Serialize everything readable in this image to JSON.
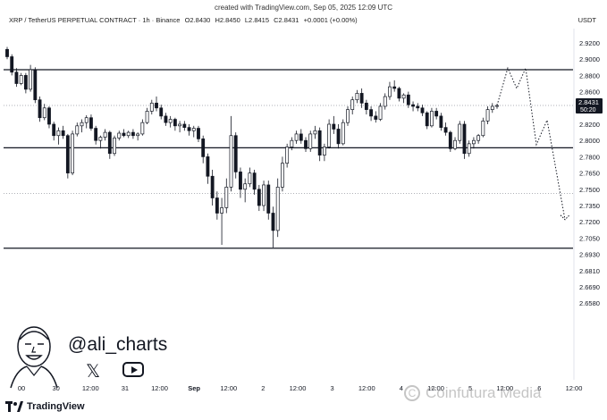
{
  "created": "created with TradingView.com, Sep 05, 2025 12:09 UTC",
  "header": {
    "symbol": "XRP / TetherUS PERPETUAL CONTRACT · 1h · Binance",
    "open": "O2.8430",
    "high": "H2.8450",
    "low": "L2.8415",
    "close": "C2.8431",
    "change": "+0.0001 (+0.00%)"
  },
  "currency": "USDT",
  "price_tag": {
    "price": "2.8431",
    "countdown": "50:20",
    "color": "#131722"
  },
  "author": {
    "handle": "@ali_charts",
    "icons": [
      "x-icon",
      "youtube-icon"
    ]
  },
  "branding": {
    "tradingview": "TradingView",
    "watermark": "Coinfutura Media"
  },
  "chart_data": {
    "type": "candlestick",
    "y_ticks": [
      "2.9200",
      "2.9000",
      "2.8800",
      "2.8600",
      "2.8400",
      "2.8200",
      "2.8000",
      "2.7800",
      "2.7650",
      "2.7500",
      "2.7350",
      "2.7200",
      "2.7050",
      "2.6930",
      "2.6810",
      "2.6690",
      "2.6580"
    ],
    "x_ticks": [
      "00",
      "30",
      "12:00",
      "31",
      "12:00",
      "Sep",
      "12:00",
      "2",
      "12:00",
      "3",
      "12:00",
      "4",
      "12:00",
      "5",
      "12:00",
      "6",
      "12:00"
    ],
    "ylim": [
      2.655,
      2.93
    ],
    "horizontal_levels": [
      2.887,
      2.791,
      2.6975
    ],
    "dotted_levels": [
      2.8431,
      2.746
    ],
    "candles": [
      [
        2.912,
        2.915,
        2.9,
        2.903
      ],
      [
        2.903,
        2.906,
        2.88,
        2.884
      ],
      [
        2.884,
        2.889,
        2.866,
        2.87
      ],
      [
        2.87,
        2.883,
        2.868,
        2.88
      ],
      [
        2.88,
        2.883,
        2.858,
        2.863
      ],
      [
        2.863,
        2.893,
        2.86,
        2.887
      ],
      [
        2.887,
        2.89,
        2.846,
        2.85
      ],
      [
        2.85,
        2.854,
        2.823,
        2.828
      ],
      [
        2.828,
        2.845,
        2.825,
        2.84
      ],
      [
        2.84,
        2.842,
        2.815,
        2.82
      ],
      [
        2.82,
        2.823,
        2.8,
        2.806
      ],
      [
        2.806,
        2.816,
        2.795,
        2.812
      ],
      [
        2.812,
        2.818,
        2.802,
        2.806
      ],
      [
        2.806,
        2.808,
        2.76,
        2.765
      ],
      [
        2.765,
        2.812,
        2.763,
        2.808
      ],
      [
        2.808,
        2.822,
        2.805,
        2.818
      ],
      [
        2.818,
        2.826,
        2.81,
        2.822
      ],
      [
        2.822,
        2.831,
        2.815,
        2.828
      ],
      [
        2.828,
        2.832,
        2.812,
        2.815
      ],
      [
        2.815,
        2.818,
        2.795,
        2.8
      ],
      [
        2.8,
        2.806,
        2.79,
        2.804
      ],
      [
        2.804,
        2.814,
        2.8,
        2.81
      ],
      [
        2.81,
        2.812,
        2.778,
        2.784
      ],
      [
        2.784,
        2.806,
        2.781,
        2.803
      ],
      [
        2.803,
        2.812,
        2.8,
        2.809
      ],
      [
        2.809,
        2.814,
        2.804,
        2.806
      ],
      [
        2.806,
        2.812,
        2.803,
        2.81
      ],
      [
        2.81,
        2.814,
        2.802,
        2.806
      ],
      [
        2.806,
        2.81,
        2.8,
        2.808
      ],
      [
        2.808,
        2.826,
        2.806,
        2.822
      ],
      [
        2.822,
        2.84,
        2.82,
        2.836
      ],
      [
        2.836,
        2.85,
        2.832,
        2.846
      ],
      [
        2.846,
        2.854,
        2.836,
        2.84
      ],
      [
        2.84,
        2.844,
        2.826,
        2.83
      ],
      [
        2.83,
        2.834,
        2.818,
        2.822
      ],
      [
        2.822,
        2.83,
        2.816,
        2.826
      ],
      [
        2.826,
        2.828,
        2.812,
        2.818
      ],
      [
        2.818,
        2.824,
        2.81,
        2.82
      ],
      [
        2.82,
        2.824,
        2.812,
        2.816
      ],
      [
        2.816,
        2.82,
        2.806,
        2.812
      ],
      [
        2.812,
        2.818,
        2.804,
        2.815
      ],
      [
        2.815,
        2.818,
        2.798,
        2.802
      ],
      [
        2.802,
        2.806,
        2.774,
        2.78
      ],
      [
        2.78,
        2.784,
        2.755,
        2.762
      ],
      [
        2.762,
        2.768,
        2.735,
        2.742
      ],
      [
        2.742,
        2.748,
        2.722,
        2.728
      ],
      [
        2.728,
        2.742,
        2.7,
        2.733
      ],
      [
        2.733,
        2.76,
        2.728,
        2.752
      ],
      [
        2.752,
        2.83,
        2.748,
        2.806
      ],
      [
        2.806,
        2.81,
        2.76,
        2.766
      ],
      [
        2.766,
        2.77,
        2.742,
        2.75
      ],
      [
        2.75,
        2.76,
        2.738,
        2.755
      ],
      [
        2.755,
        2.77,
        2.752,
        2.765
      ],
      [
        2.765,
        2.768,
        2.745,
        2.75
      ],
      [
        2.75,
        2.754,
        2.73,
        2.735
      ],
      [
        2.735,
        2.758,
        2.73,
        2.754
      ],
      [
        2.754,
        2.758,
        2.722,
        2.728
      ],
      [
        2.728,
        2.734,
        2.698,
        2.712
      ],
      [
        2.712,
        2.76,
        2.706,
        2.752
      ],
      [
        2.752,
        2.78,
        2.748,
        2.774
      ],
      [
        2.774,
        2.796,
        2.77,
        2.792
      ],
      [
        2.792,
        2.804,
        2.788,
        2.8
      ],
      [
        2.8,
        2.812,
        2.796,
        2.808
      ],
      [
        2.808,
        2.814,
        2.796,
        2.8
      ],
      [
        2.8,
        2.804,
        2.786,
        2.79
      ],
      [
        2.79,
        2.812,
        2.786,
        2.808
      ],
      [
        2.808,
        2.818,
        2.802,
        2.812
      ],
      [
        2.812,
        2.816,
        2.776,
        2.782
      ],
      [
        2.782,
        2.796,
        2.776,
        2.792
      ],
      [
        2.792,
        2.826,
        2.79,
        2.82
      ],
      [
        2.82,
        2.83,
        2.808,
        2.814
      ],
      [
        2.814,
        2.82,
        2.79,
        2.796
      ],
      [
        2.796,
        2.826,
        2.794,
        2.822
      ],
      [
        2.822,
        2.842,
        2.818,
        2.838
      ],
      [
        2.838,
        2.854,
        2.832,
        2.85
      ],
      [
        2.85,
        2.862,
        2.846,
        2.858
      ],
      [
        2.858,
        2.864,
        2.84,
        2.846
      ],
      [
        2.846,
        2.85,
        2.832,
        2.838
      ],
      [
        2.838,
        2.842,
        2.824,
        2.83
      ],
      [
        2.83,
        2.836,
        2.822,
        2.826
      ],
      [
        2.826,
        2.846,
        2.824,
        2.842
      ],
      [
        2.842,
        2.858,
        2.838,
        2.854
      ],
      [
        2.854,
        2.872,
        2.85,
        2.866
      ],
      [
        2.866,
        2.874,
        2.86,
        2.864
      ],
      [
        2.864,
        2.866,
        2.848,
        2.852
      ],
      [
        2.852,
        2.858,
        2.846,
        2.856
      ],
      [
        2.856,
        2.86,
        2.84,
        2.844
      ],
      [
        2.844,
        2.848,
        2.836,
        2.842
      ],
      [
        2.842,
        2.846,
        2.836,
        2.84
      ],
      [
        2.84,
        2.844,
        2.83,
        2.834
      ],
      [
        2.834,
        2.836,
        2.814,
        2.818
      ],
      [
        2.818,
        2.84,
        2.816,
        2.836
      ],
      [
        2.836,
        2.84,
        2.826,
        2.83
      ],
      [
        2.83,
        2.834,
        2.812,
        2.816
      ],
      [
        2.816,
        2.822,
        2.806,
        2.81
      ],
      [
        2.81,
        2.812,
        2.786,
        2.79
      ],
      [
        2.79,
        2.804,
        2.788,
        2.8
      ],
      [
        2.8,
        2.824,
        2.796,
        2.82
      ],
      [
        2.82,
        2.824,
        2.778,
        2.784
      ],
      [
        2.784,
        2.8,
        2.78,
        2.796
      ],
      [
        2.796,
        2.804,
        2.79,
        2.8
      ],
      [
        2.8,
        2.808,
        2.796,
        2.806
      ],
      [
        2.806,
        2.828,
        2.804,
        2.824
      ],
      [
        2.824,
        2.842,
        2.82,
        2.838
      ],
      [
        2.838,
        2.846,
        2.834,
        2.842
      ],
      [
        2.842,
        2.845,
        2.839,
        2.843
      ]
    ],
    "projection": [
      [
        2.8431,
        2.889
      ],
      [
        2.864,
        2.889
      ],
      [
        2.795,
        2.825
      ],
      [
        2.722,
        2.722
      ]
    ]
  }
}
